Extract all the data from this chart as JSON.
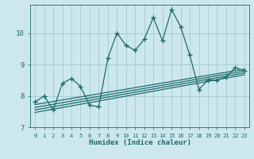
{
  "xlabel": "Humidex (Indice chaleur)",
  "bg_color": "#cce8ec",
  "grid_color": "#aacdd4",
  "line_color": "#1e6b6b",
  "xlim": [
    -0.5,
    23.5
  ],
  "ylim": [
    7.0,
    10.9
  ],
  "yticks": [
    7,
    8,
    9,
    10
  ],
  "xticks": [
    0,
    1,
    2,
    3,
    4,
    5,
    6,
    7,
    8,
    9,
    10,
    11,
    12,
    13,
    14,
    15,
    16,
    17,
    18,
    19,
    20,
    21,
    22,
    23
  ],
  "main_x": [
    0,
    1,
    2,
    3,
    4,
    5,
    6,
    7,
    8,
    9,
    10,
    11,
    12,
    13,
    14,
    15,
    16,
    17,
    18,
    19,
    20,
    21,
    22,
    23
  ],
  "main_y": [
    7.8,
    8.0,
    7.55,
    8.4,
    8.55,
    8.3,
    7.7,
    7.65,
    9.2,
    10.0,
    9.6,
    9.45,
    9.8,
    10.5,
    9.75,
    10.75,
    10.2,
    9.3,
    8.2,
    8.5,
    8.5,
    8.6,
    8.9,
    8.8
  ],
  "reg_lines": [
    {
      "x": [
        0,
        23
      ],
      "y": [
        7.72,
        8.85
      ]
    },
    {
      "x": [
        0,
        23
      ],
      "y": [
        7.63,
        8.79
      ]
    },
    {
      "x": [
        0,
        23
      ],
      "y": [
        7.55,
        8.73
      ]
    },
    {
      "x": [
        0,
        23
      ],
      "y": [
        7.47,
        8.67
      ]
    }
  ]
}
